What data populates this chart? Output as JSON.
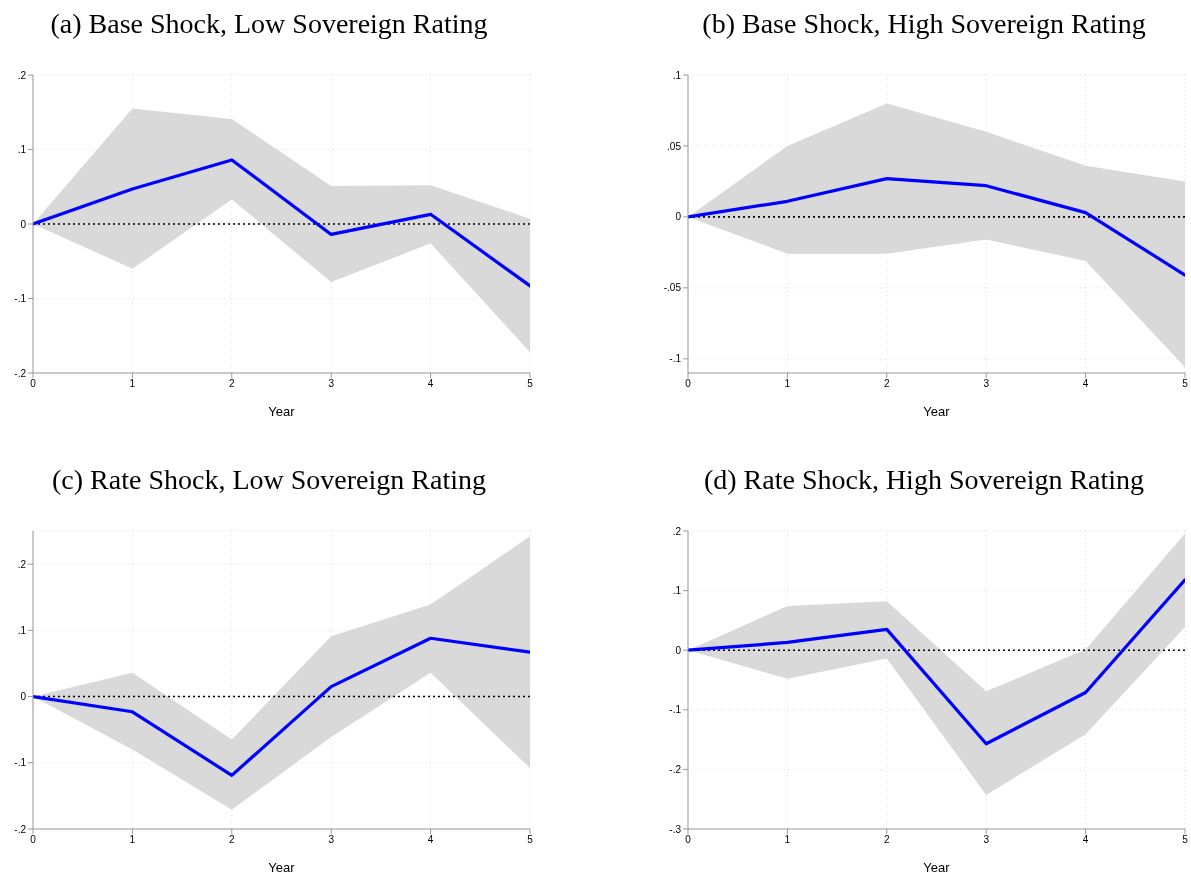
{
  "chart_data": [
    {
      "type": "line",
      "title": "(a) Base Shock, Low Sovereign Rating",
      "xlabel": "Year",
      "x": [
        0,
        1,
        2,
        3,
        4,
        5
      ],
      "xlim": [
        0,
        5
      ],
      "xticks": [
        0,
        1,
        2,
        3,
        4,
        5
      ],
      "ylim": [
        -0.2,
        0.2
      ],
      "yticks": [
        {
          "value": -0.2,
          "label": "-.2"
        },
        {
          "value": -0.1,
          "label": "-.1"
        },
        {
          "value": 0,
          "label": "0"
        },
        {
          "value": 0.1,
          "label": ".1"
        },
        {
          "value": 0.2,
          "label": ".2"
        }
      ],
      "grid": true,
      "series": [
        {
          "color": "#0000ff",
          "values": [
            0,
            0.047,
            0.086,
            -0.014,
            0.013,
            -0.083
          ],
          "lower": [
            0,
            -0.06,
            0.033,
            -0.078,
            -0.026,
            -0.172
          ],
          "upper": [
            0,
            0.155,
            0.141,
            0.051,
            0.052,
            0.007
          ]
        }
      ],
      "ref_lines": [
        {
          "axis": "y",
          "value": 0,
          "color": "#000000",
          "line_style": "dotted"
        }
      ]
    },
    {
      "type": "line",
      "title": "(b) Base Shock, High Sovereign Rating",
      "xlabel": "Year",
      "x": [
        0,
        1,
        2,
        3,
        4,
        5
      ],
      "xlim": [
        0,
        5
      ],
      "xticks": [
        0,
        1,
        2,
        3,
        4,
        5
      ],
      "ylim": [
        -0.11,
        0.1
      ],
      "yticks": [
        {
          "value": -0.1,
          "label": "-.1"
        },
        {
          "value": -0.05,
          "label": "-.05"
        },
        {
          "value": 0,
          "label": "0"
        },
        {
          "value": 0.05,
          "label": ".05"
        },
        {
          "value": 0.1,
          "label": ".1"
        }
      ],
      "grid": true,
      "series": [
        {
          "color": "#0000ff",
          "values": [
            0,
            0.011,
            0.027,
            0.022,
            0.003,
            -0.041
          ],
          "lower": [
            0,
            -0.026,
            -0.026,
            -0.016,
            -0.031,
            -0.106
          ],
          "upper": [
            0,
            0.05,
            0.08,
            0.06,
            0.036,
            0.025
          ]
        }
      ],
      "ref_lines": [
        {
          "axis": "y",
          "value": 0,
          "color": "#000000",
          "line_style": "dotted"
        }
      ]
    },
    {
      "type": "line",
      "title": "(c) Rate Shock, Low Sovereign Rating",
      "xlabel": "Year",
      "x": [
        0,
        1,
        2,
        3,
        4,
        5
      ],
      "xlim": [
        0,
        5
      ],
      "xticks": [
        0,
        1,
        2,
        3,
        4,
        5
      ],
      "ylim": [
        -0.2,
        0.25
      ],
      "yticks": [
        {
          "value": -0.2,
          "label": "-.2"
        },
        {
          "value": -0.1,
          "label": "-.1"
        },
        {
          "value": 0,
          "label": "0"
        },
        {
          "value": 0.1,
          "label": ".1"
        },
        {
          "value": 0.2,
          "label": ".2"
        }
      ],
      "grid": true,
      "series": [
        {
          "color": "#0000ff",
          "values": [
            0,
            -0.023,
            -0.119,
            0.015,
            0.088,
            0.067
          ],
          "lower": [
            0,
            -0.08,
            -0.171,
            -0.061,
            0.036,
            -0.108
          ],
          "upper": [
            0,
            0.036,
            -0.065,
            0.091,
            0.139,
            0.242
          ]
        }
      ],
      "ref_lines": [
        {
          "axis": "y",
          "value": 0,
          "color": "#000000",
          "line_style": "dotted"
        }
      ]
    },
    {
      "type": "line",
      "title": "(d) Rate Shock, High Sovereign Rating",
      "xlabel": "Year",
      "x": [
        0,
        1,
        2,
        3,
        4,
        5
      ],
      "xlim": [
        0,
        5
      ],
      "xticks": [
        0,
        1,
        2,
        3,
        4,
        5
      ],
      "ylim": [
        -0.3,
        0.2
      ],
      "yticks": [
        {
          "value": -0.3,
          "label": "-.3"
        },
        {
          "value": -0.2,
          "label": "-.2"
        },
        {
          "value": -0.1,
          "label": "-.1"
        },
        {
          "value": 0,
          "label": "0"
        },
        {
          "value": 0.1,
          "label": ".1"
        },
        {
          "value": 0.2,
          "label": ".2"
        }
      ],
      "grid": true,
      "series": [
        {
          "color": "#0000ff",
          "values": [
            0,
            0.013,
            0.035,
            -0.157,
            -0.071,
            0.118
          ],
          "lower": [
            0,
            -0.048,
            -0.014,
            -0.243,
            -0.141,
            0.039
          ],
          "upper": [
            0,
            0.074,
            0.082,
            -0.069,
            0.001,
            0.196
          ]
        }
      ],
      "ref_lines": [
        {
          "axis": "y",
          "value": 0,
          "color": "#000000",
          "line_style": "dotted"
        }
      ]
    }
  ]
}
